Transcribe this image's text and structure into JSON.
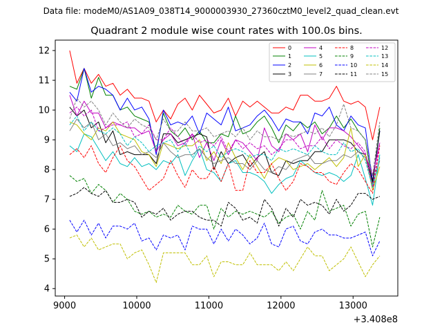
{
  "suptitle": "Data file: modeM0/AS1A09_038T14_9000003930_27360cztM0_level2_quad_clean.evt",
  "chart_data": {
    "type": "line",
    "title": "Quadrant 2 module wise count rates with 100.0s bins.",
    "xlabel": "",
    "ylabel": "",
    "x_offset_label": "+3.408e8",
    "xlim": [
      8870,
      13620
    ],
    "ylim": [
      3.75,
      12.35
    ],
    "xticks": [
      9000,
      10000,
      11000,
      12000,
      13000
    ],
    "yticks": [
      4,
      5,
      6,
      7,
      8,
      9,
      10,
      11,
      12
    ],
    "x": [
      9070,
      9170,
      9270,
      9370,
      9470,
      9570,
      9670,
      9770,
      9870,
      9970,
      10070,
      10170,
      10270,
      10370,
      10470,
      10570,
      10670,
      10770,
      10870,
      10970,
      11070,
      11170,
      11270,
      11370,
      11470,
      11570,
      11670,
      11770,
      11870,
      11970,
      12070,
      12170,
      12270,
      12370,
      12470,
      12570,
      12670,
      12770,
      12870,
      12970,
      13070,
      13170,
      13270,
      13370
    ],
    "legend_position": "top-right",
    "series": [
      {
        "name": "0",
        "color": "#ff0000",
        "dash": "solid",
        "values": [
          12.0,
          10.9,
          11.4,
          10.9,
          11.2,
          10.8,
          10.9,
          10.5,
          10.7,
          10.4,
          10.4,
          10.3,
          9.6,
          10.0,
          9.7,
          10.2,
          10.4,
          10.0,
          10.5,
          10.2,
          9.9,
          10.0,
          10.4,
          9.8,
          10.3,
          10.1,
          10.3,
          10.1,
          9.9,
          9.9,
          10.1,
          10.0,
          10.5,
          10.5,
          10.3,
          10.3,
          10.4,
          10.8,
          10.3,
          10.2,
          10.3,
          10.1,
          9.0,
          10.1
        ]
      },
      {
        "name": "1",
        "color": "#008000",
        "dash": "solid",
        "values": [
          10.8,
          10.7,
          11.4,
          10.4,
          11.1,
          10.5,
          10.5,
          10.0,
          10.1,
          9.8,
          9.7,
          9.6,
          8.6,
          9.9,
          9.3,
          9.1,
          9.4,
          9.0,
          9.3,
          8.9,
          8.9,
          9.2,
          9.1,
          9.8,
          9.2,
          9.3,
          9.6,
          9.8,
          9.4,
          8.9,
          9.5,
          9.3,
          9.6,
          9.4,
          9.6,
          9.2,
          9.4,
          9.8,
          9.4,
          9.7,
          9.3,
          9.0,
          7.5,
          9.4
        ]
      },
      {
        "name": "2",
        "color": "#0000ff",
        "dash": "solid",
        "values": [
          10.6,
          10.3,
          11.4,
          10.6,
          10.8,
          10.7,
          10.5,
          10.0,
          10.4,
          10.0,
          10.1,
          9.7,
          8.5,
          10.0,
          9.5,
          9.6,
          9.5,
          9.8,
          9.2,
          9.9,
          9.7,
          9.5,
          10.1,
          9.3,
          9.4,
          9.5,
          9.8,
          10.0,
          9.7,
          9.3,
          9.7,
          9.6,
          9.6,
          9.2,
          9.9,
          9.8,
          10.1,
          9.5,
          9.3,
          9.8,
          9.5,
          9.4,
          7.6,
          9.3
        ]
      },
      {
        "name": "3",
        "color": "#000000",
        "dash": "solid",
        "values": [
          10.1,
          9.8,
          10.0,
          9.4,
          9.6,
          8.9,
          9.3,
          8.5,
          8.6,
          8.5,
          8.5,
          8.5,
          8.2,
          9.2,
          9.2,
          8.9,
          9.0,
          9.1,
          9.2,
          9.1,
          8.0,
          8.6,
          8.2,
          8.4,
          8.5,
          8.1,
          8.4,
          8.6,
          7.9,
          7.8,
          8.3,
          8.2,
          8.3,
          8.3,
          8.6,
          8.6,
          9.0,
          9.0,
          9.0,
          8.9,
          8.6,
          8.5,
          7.6,
          9.3
        ]
      },
      {
        "name": "4",
        "color": "#c000c0",
        "dash": "solid",
        "values": [
          10.5,
          9.8,
          10.3,
          9.9,
          9.9,
          9.4,
          9.6,
          9.5,
          9.4,
          9.4,
          9.2,
          9.3,
          8.6,
          9.0,
          9.2,
          8.8,
          8.9,
          9.2,
          8.4,
          8.9,
          8.3,
          9.0,
          8.5,
          9.0,
          8.9,
          8.6,
          8.3,
          9.4,
          8.8,
          8.6,
          9.2,
          9.0,
          9.2,
          8.6,
          9.5,
          9.0,
          9.4,
          9.4,
          9.3,
          9.1,
          8.8,
          8.5,
          7.8,
          8.9
        ]
      },
      {
        "name": "5",
        "color": "#00bfbf",
        "dash": "solid",
        "values": [
          8.8,
          8.6,
          9.2,
          9.1,
          8.7,
          8.3,
          8.6,
          8.2,
          8.1,
          8.4,
          8.1,
          8.2,
          8.0,
          8.3,
          8.2,
          8.5,
          7.8,
          8.3,
          8.7,
          8.0,
          7.9,
          7.6,
          8.2,
          8.3,
          7.9,
          7.9,
          7.8,
          7.6,
          7.2,
          7.5,
          7.7,
          7.8,
          8.3,
          8.1,
          7.9,
          7.8,
          7.9,
          7.8,
          7.6,
          7.8,
          8.5,
          7.7,
          6.8,
          8.5
        ]
      },
      {
        "name": "6",
        "color": "#bfbf00",
        "dash": "solid",
        "values": [
          9.6,
          9.5,
          9.2,
          9.0,
          9.4,
          9.3,
          9.6,
          9.2,
          9.1,
          9.0,
          8.6,
          8.5,
          8.1,
          8.9,
          8.8,
          8.7,
          8.8,
          8.8,
          9.0,
          8.3,
          8.6,
          8.2,
          8.9,
          8.4,
          8.0,
          8.5,
          8.1,
          7.7,
          8.2,
          8.4,
          8.3,
          8.0,
          8.1,
          8.2,
          8.0,
          8.2,
          8.4,
          8.1,
          8.4,
          9.4,
          8.1,
          8.5,
          7.3,
          8.1
        ]
      },
      {
        "name": "7",
        "color": "#808080",
        "dash": "solid",
        "values": [
          9.3,
          9.7,
          9.4,
          9.6,
          9.0,
          9.2,
          8.8,
          8.9,
          8.7,
          8.8,
          8.5,
          8.6,
          8.4,
          8.9,
          8.6,
          8.4,
          8.5,
          8.5,
          8.7,
          8.4,
          8.2,
          8.3,
          8.4,
          8.2,
          8.2,
          8.0,
          8.3,
          8.0,
          7.9,
          8.1,
          8.0,
          8.3,
          8.4,
          8.5,
          8.2,
          8.2,
          8.3,
          8.3,
          8.5,
          8.4,
          8.6,
          8.4,
          7.5,
          8.3
        ]
      },
      {
        "name": "8",
        "color": "#ff0000",
        "dash": "dashed",
        "values": [
          8.5,
          8.7,
          8.4,
          8.8,
          8.2,
          7.9,
          8.4,
          8.8,
          8.3,
          8.1,
          7.7,
          7.3,
          7.5,
          7.7,
          8.3,
          7.8,
          7.4,
          8.0,
          7.7,
          7.7,
          8.1,
          7.6,
          8.2,
          7.3,
          7.3,
          8.3,
          7.9,
          7.9,
          8.2,
          7.7,
          7.3,
          7.6,
          8.2,
          8.1,
          7.9,
          7.9,
          7.6,
          7.5,
          7.9,
          8.2,
          8.0,
          7.6,
          7.2,
          8.8
        ]
      },
      {
        "name": "9",
        "color": "#008000",
        "dash": "dashed",
        "values": [
          7.8,
          7.6,
          7.7,
          7.2,
          7.5,
          7.3,
          6.9,
          7.2,
          7.0,
          6.6,
          6.5,
          6.6,
          6.4,
          6.5,
          6.4,
          6.8,
          6.6,
          6.5,
          6.8,
          6.8,
          6.0,
          6.7,
          6.4,
          6.6,
          6.5,
          6.6,
          6.5,
          6.4,
          6.6,
          6.2,
          6.4,
          6.5,
          6.0,
          6.6,
          6.3,
          7.3,
          6.6,
          6.7,
          6.8,
          6.1,
          6.5,
          6.6,
          5.4,
          6.4
        ]
      },
      {
        "name": "10",
        "color": "#0000ff",
        "dash": "dashed",
        "values": [
          6.3,
          5.9,
          6.3,
          5.8,
          6.2,
          5.7,
          6.1,
          6.1,
          6.0,
          6.2,
          5.6,
          5.7,
          5.3,
          5.8,
          5.7,
          5.8,
          5.3,
          6.1,
          6.0,
          6.0,
          5.5,
          6.0,
          5.6,
          6.0,
          5.8,
          5.5,
          5.7,
          6.2,
          5.5,
          5.4,
          6.0,
          6.1,
          5.6,
          5.5,
          5.9,
          6.0,
          5.8,
          5.8,
          5.7,
          5.7,
          5.8,
          5.9,
          5.1,
          5.6
        ]
      },
      {
        "name": "11",
        "color": "#000000",
        "dash": "dashed",
        "values": [
          7.1,
          7.2,
          7.4,
          7.2,
          7.1,
          7.3,
          6.9,
          6.9,
          7.0,
          6.9,
          6.4,
          6.6,
          6.5,
          6.7,
          6.3,
          6.5,
          6.6,
          6.6,
          6.4,
          6.3,
          6.3,
          6.1,
          6.9,
          6.7,
          6.3,
          6.4,
          6.2,
          7.0,
          6.7,
          6.1,
          6.7,
          6.4,
          7.0,
          6.8,
          6.9,
          6.8,
          6.5,
          7.0,
          6.6,
          6.8,
          7.2,
          7.2,
          7.0,
          7.1
        ]
      },
      {
        "name": "12",
        "color": "#c000c0",
        "dash": "dashed",
        "values": [
          9.9,
          10.1,
          9.8,
          10.0,
          9.3,
          9.4,
          9.5,
          9.5,
          9.6,
          9.1,
          9.2,
          9.5,
          9.0,
          9.0,
          9.4,
          9.1,
          8.8,
          9.2,
          8.9,
          9.0,
          8.8,
          9.1,
          8.6,
          9.0,
          8.7,
          8.9,
          8.7,
          8.8,
          8.5,
          8.7,
          9.0,
          9.0,
          8.7,
          8.8,
          8.8,
          9.1,
          8.7,
          9.0,
          8.8,
          8.7,
          8.9,
          8.6,
          7.4,
          8.9
        ]
      },
      {
        "name": "13",
        "color": "#00bfbf",
        "dash": "dashed",
        "values": [
          9.5,
          9.8,
          9.3,
          9.6,
          9.3,
          9.2,
          9.4,
          9.2,
          8.8,
          9.1,
          8.9,
          8.6,
          8.8,
          8.9,
          9.0,
          8.6,
          8.9,
          8.4,
          8.8,
          8.6,
          8.8,
          8.4,
          8.6,
          8.7,
          8.6,
          8.4,
          8.5,
          8.5,
          8.3,
          8.7,
          8.6,
          8.7,
          8.6,
          8.5,
          8.8,
          8.6,
          8.5,
          8.5,
          8.9,
          8.6,
          8.7,
          8.3,
          7.4,
          8.4
        ]
      },
      {
        "name": "14",
        "color": "#bfbf00",
        "dash": "dashed",
        "values": [
          5.7,
          5.8,
          5.4,
          5.7,
          5.3,
          5.4,
          5.5,
          5.5,
          5.0,
          5.2,
          5.3,
          4.8,
          4.2,
          5.2,
          5.2,
          5.2,
          5.2,
          4.8,
          4.8,
          5.1,
          4.4,
          4.9,
          4.9,
          4.8,
          4.8,
          5.2,
          4.8,
          4.8,
          4.8,
          4.6,
          4.9,
          4.6,
          5.0,
          5.4,
          5.1,
          5.1,
          4.6,
          4.8,
          5.0,
          5.4,
          4.9,
          4.4,
          4.8,
          5.1
        ]
      },
      {
        "name": "15",
        "color": "#808080",
        "dash": "dashed",
        "values": [
          9.7,
          10.4,
          10.1,
          10.3,
          10.0,
          9.5,
          9.9,
          9.6,
          9.4,
          9.7,
          9.5,
          9.4,
          9.0,
          9.7,
          9.3,
          9.3,
          9.6,
          9.3,
          9.3,
          9.4,
          9.1,
          9.2,
          9.3,
          9.1,
          9.4,
          9.0,
          9.3,
          9.1,
          9.1,
          9.0,
          9.2,
          9.1,
          9.2,
          9.3,
          9.2,
          9.4,
          9.1,
          9.5,
          10.2,
          9.4,
          9.3,
          9.0,
          7.8,
          9.6
        ]
      }
    ]
  }
}
